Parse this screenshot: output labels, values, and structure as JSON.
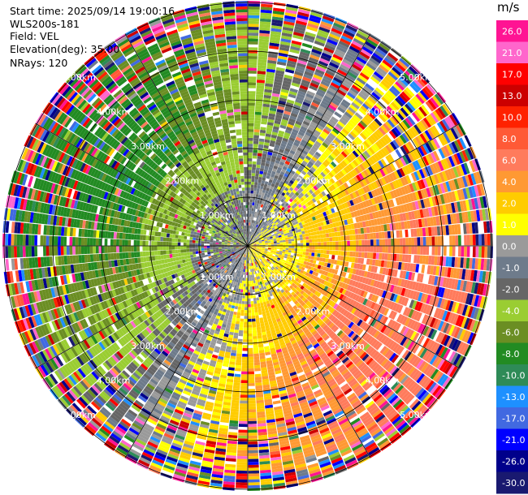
{
  "info": {
    "start_time": "Start time: 2025/09/14 19:00:16",
    "site": "WLS200s-181",
    "field": "Field: VEL",
    "elevation": "Elevation(deg): 35.00",
    "nrays": "NRays: 120"
  },
  "colorbar": {
    "unit": "m/s",
    "ticks": [
      "26.0",
      "21.0",
      "17.0",
      "13.0",
      "10.0",
      "8.0",
      "6.0",
      "4.0",
      "2.0",
      "1.0",
      "0.0",
      "-1.0",
      "-2.0",
      "-4.0",
      "-6.0",
      "-8.0",
      "-10.0",
      "-13.0",
      "-17.0",
      "-21.0",
      "-26.0",
      "-30.0"
    ],
    "colors": [
      "#ff1493",
      "#ff66cc",
      "#ff0000",
      "#cc0000",
      "#ff2200",
      "#ff5a36",
      "#ff7b5c",
      "#ff9933",
      "#ffcc00",
      "#ffff00",
      "#9a9a9a",
      "#6e7b8b",
      "#666666",
      "#9acd32",
      "#6b8e23",
      "#228b22",
      "#2e8b57",
      "#1e90ff",
      "#4169e1",
      "#0000ff",
      "#00008b",
      "#191970"
    ]
  },
  "chart_data": {
    "type": "ppi-velocity",
    "field": "VEL",
    "units": "m/s",
    "nrays": 120,
    "elevation_deg": 35.0,
    "range_rings_km": [
      1.0,
      2.0,
      3.0,
      4.0,
      5.0
    ],
    "ring_labels": [
      "1.00km",
      "2.00km",
      "3.00km",
      "4.00km",
      "5.00km"
    ],
    "color_scale_bounds": [
      -30.0,
      -26.0,
      -21.0,
      -17.0,
      -13.0,
      -10.0,
      -8.0,
      -6.0,
      -4.0,
      -2.0,
      -1.0,
      0.0,
      1.0,
      2.0,
      4.0,
      6.0,
      8.0,
      10.0,
      13.0,
      17.0,
      21.0,
      26.0
    ]
  }
}
